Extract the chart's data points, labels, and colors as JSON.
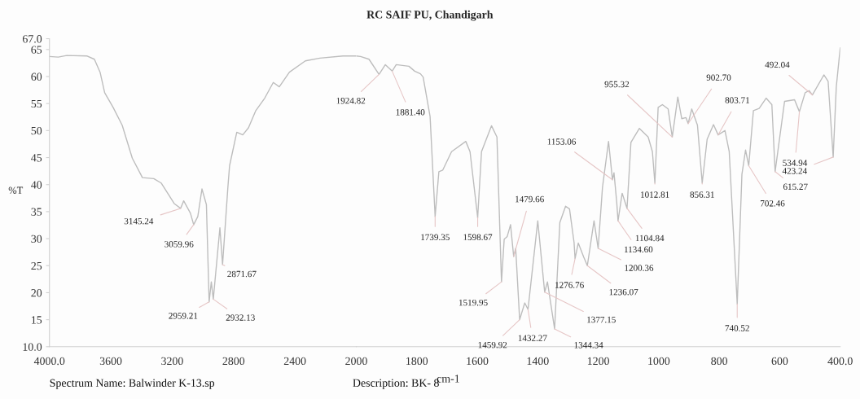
{
  "chart_data": [
    {
      "type": "line",
      "ylabel": "%T",
      "grid": false,
      "legend": false,
      "xlim": [
        4000,
        2000
      ],
      "ylim": [
        10,
        67
      ],
      "xticks": [
        {
          "value": 4000,
          "label": "4000.0"
        },
        3600,
        3200,
        2800,
        2400
      ],
      "yticks": [
        {
          "value": 10,
          "label": "10.0"
        },
        15,
        20,
        25,
        30,
        35,
        40,
        45,
        50,
        55,
        60,
        65,
        {
          "value": 67,
          "label": "67.0"
        }
      ],
      "series": [
        {
          "color": "#bdbdbd",
          "x": [
            4000,
            3943,
            3887,
            3754,
            3707,
            3670,
            3640,
            3585,
            3526,
            3460,
            3394,
            3320,
            3272,
            3187,
            3145.24,
            3125,
            3081,
            3059.96,
            3033,
            3006,
            2977,
            2959.21,
            2945,
            2932.13,
            2889,
            2871.67,
            2837,
            2826,
            2779,
            2740,
            2703,
            2655,
            2597,
            2541,
            2502,
            2436,
            2332,
            2237,
            2087,
            2000
          ],
          "values": [
            63.7,
            63.6,
            63.9,
            63.8,
            63.2,
            60.8,
            57.0,
            54.3,
            51.0,
            44.9,
            41.3,
            41.1,
            40.3,
            36.5,
            35.6,
            37.0,
            34.7,
            32.6,
            34.1,
            39.2,
            36.3,
            18.3,
            22.0,
            18.8,
            32.0,
            25.2,
            39.5,
            43.5,
            49.7,
            49.2,
            50.5,
            53.7,
            56.0,
            58.9,
            58.1,
            60.8,
            62.9,
            63.4,
            63.8,
            63.8
          ]
        }
      ],
      "annotations": [
        {
          "text": "3145.24",
          "x": 3145.24,
          "y": 35.6
        },
        {
          "text": "3059.96",
          "x": 3059.96,
          "y": 32.6
        },
        {
          "text": "2959.21",
          "x": 2959.21,
          "y": 18.3
        },
        {
          "text": "2932.13",
          "x": 2932.13,
          "y": 18.8
        },
        {
          "text": "2871.67",
          "x": 2871.67,
          "y": 25.2
        },
        "Spectrum Name: Balwinder K-13.sp"
      ]
    },
    {
      "type": "line",
      "title": "RC SAIF PU, Chandigarh",
      "xlabel": "cm-1",
      "tick_labels": "x",
      "grid": false,
      "legend": false,
      "xlim": [
        2000,
        400
      ],
      "ylim": [
        10,
        67
      ],
      "xticks": [
        2000,
        1800,
        1600,
        1400,
        1200,
        1000,
        800,
        600,
        {
          "value": 400,
          "label": "400.0"
        }
      ],
      "series": [
        {
          "color": "#bdbdbd",
          "x": [
            2000,
            1986,
            1958,
            1924.82,
            1904,
            1881.4,
            1868,
            1826,
            1807,
            1788,
            1779,
            1756,
            1739.35,
            1727,
            1714,
            1685,
            1638,
            1624,
            1598.67,
            1586,
            1553,
            1535,
            1519.95,
            1511,
            1501,
            1490,
            1479.66,
            1473,
            1459.92,
            1443,
            1432.27,
            1400,
            1380,
            1377.15,
            1368,
            1344.34,
            1327,
            1308,
            1295,
            1280,
            1276.76,
            1266,
            1248,
            1236.07,
            1214,
            1200.36,
            1186,
            1166,
            1153.06,
            1148,
            1139,
            1134.6,
            1121,
            1104.84,
            1092,
            1064,
            1035,
            1021,
            1012.81,
            1002,
            988,
            969,
            955.32,
            937,
            924,
            910,
            902.7,
            891,
            872,
            856.31,
            840,
            819,
            803.71,
            781,
            767,
            740.52,
            725,
            713,
            702.46,
            687,
            668,
            645,
            626,
            615.27,
            584,
            551,
            534.94,
            516,
            503,
            492.04,
            454,
            440,
            423.24,
            413,
            400
          ],
          "values": [
            63.8,
            63.7,
            63.2,
            60.4,
            62.2,
            61.0,
            62.2,
            61.9,
            61.0,
            60.5,
            59.9,
            52.6,
            34.1,
            42.4,
            42.7,
            46.1,
            48.0,
            46.1,
            33.9,
            46.1,
            50.9,
            48.8,
            22.0,
            29.9,
            30.4,
            32.6,
            26.7,
            28.2,
            15.0,
            18.1,
            16.9,
            33.3,
            21.7,
            20.1,
            22.0,
            13.3,
            33.0,
            36.0,
            35.5,
            29.3,
            26.3,
            29.2,
            26.6,
            25.0,
            33.3,
            28.2,
            39.5,
            48.0,
            40.9,
            42.2,
            36.8,
            33.3,
            38.4,
            35.6,
            47.8,
            50.4,
            48.8,
            46.1,
            40.3,
            54.3,
            54.8,
            54.0,
            48.8,
            56.2,
            52.2,
            52.4,
            51.3,
            54.0,
            51.0,
            40.3,
            48.4,
            51.1,
            49.2,
            50.0,
            46.1,
            17.9,
            41.9,
            46.4,
            43.5,
            53.7,
            54.1,
            56.0,
            54.8,
            42.4,
            55.4,
            55.7,
            53.5,
            57.0,
            57.4,
            56.6,
            60.3,
            59.1,
            45.1,
            58.1,
            65.3
          ]
        }
      ],
      "annotations": [
        {
          "text": "1924.82",
          "x": 1924.82,
          "y": 60.4
        },
        {
          "text": "1881.40",
          "x": 1881.4,
          "y": 61.0
        },
        {
          "text": "1739.35",
          "x": 1739.35,
          "y": 34.1
        },
        {
          "text": "1598.67",
          "x": 1598.67,
          "y": 33.9
        },
        {
          "text": "1519.95",
          "x": 1519.95,
          "y": 22.0
        },
        {
          "text": "1479.66",
          "x": 1479.66,
          "y": 26.7
        },
        {
          "text": "1459.92",
          "x": 1459.92,
          "y": 15.0
        },
        {
          "text": "1432.27",
          "x": 1432.27,
          "y": 16.9
        },
        {
          "text": "1377.15",
          "x": 1377.15,
          "y": 20.1
        },
        {
          "text": "1344.34",
          "x": 1344.34,
          "y": 13.3
        },
        {
          "text": "1276.76",
          "x": 1276.76,
          "y": 26.3
        },
        {
          "text": "1236.07",
          "x": 1236.07,
          "y": 25.0
        },
        {
          "text": "1200.36",
          "x": 1200.36,
          "y": 28.2
        },
        {
          "text": "1153.06",
          "x": 1153.06,
          "y": 40.9
        },
        {
          "text": "1134.60",
          "x": 1134.6,
          "y": 33.3
        },
        {
          "text": "1104.84",
          "x": 1104.84,
          "y": 35.6
        },
        {
          "text": "1012.81",
          "x": 1012.81,
          "y": 40.3
        },
        {
          "text": "955.32",
          "x": 955.32,
          "y": 48.8
        },
        {
          "text": "902.70",
          "x": 902.7,
          "y": 51.3
        },
        {
          "text": "856.31",
          "x": 856.31,
          "y": 40.3
        },
        {
          "text": "803.71",
          "x": 803.71,
          "y": 49.2
        },
        {
          "text": "740.52",
          "x": 740.52,
          "y": 17.9
        },
        {
          "text": "702.46",
          "x": 702.46,
          "y": 43.5
        },
        {
          "text": "615.27",
          "x": 615.27,
          "y": 42.4
        },
        {
          "text": "534.94",
          "x": 534.94,
          "y": 53.5
        },
        {
          "text": "492.04",
          "x": 492.04,
          "y": 56.6
        },
        {
          "text": "423.24",
          "x": 423.24,
          "y": 45.1
        },
        "Description: BK- 8"
      ]
    }
  ]
}
